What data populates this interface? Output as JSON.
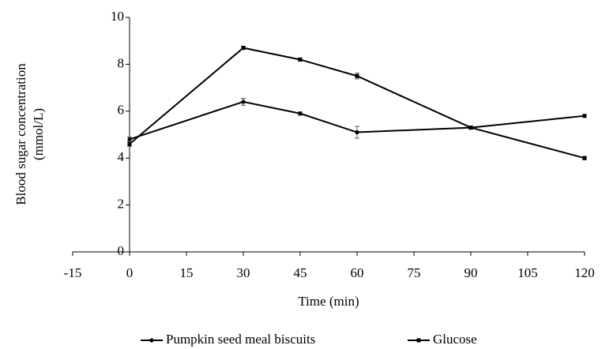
{
  "chart_data": {
    "type": "line",
    "x_label": "Time (min)",
    "y_label": [
      "Blood sugar concentration",
      "(mmol/L)"
    ],
    "x": [
      0,
      30,
      45,
      60,
      90,
      120
    ],
    "series": [
      {
        "name": "Pumpkin seed meal biscuits",
        "color": "#000000",
        "marker": "circle",
        "values": [
          4.8,
          6.4,
          5.9,
          5.1,
          5.3,
          5.8
        ],
        "errors": [
          0.1,
          0.15,
          0.07,
          0.25,
          0.07,
          0.07
        ]
      },
      {
        "name": "Glucose",
        "color": "#000000",
        "marker": "square",
        "values": [
          4.6,
          8.7,
          8.2,
          7.5,
          5.3,
          4.0
        ],
        "errors": [
          0.1,
          0.07,
          0.07,
          0.12,
          0.07,
          0.07
        ]
      }
    ],
    "xlim": [
      -15,
      120
    ],
    "xticks": [
      -15,
      0,
      15,
      30,
      45,
      60,
      75,
      90,
      105,
      120
    ],
    "ylim": [
      0,
      10
    ],
    "yticks": [
      0,
      2,
      4,
      6,
      8,
      10
    ],
    "legend": "bottom",
    "grid": false
  }
}
